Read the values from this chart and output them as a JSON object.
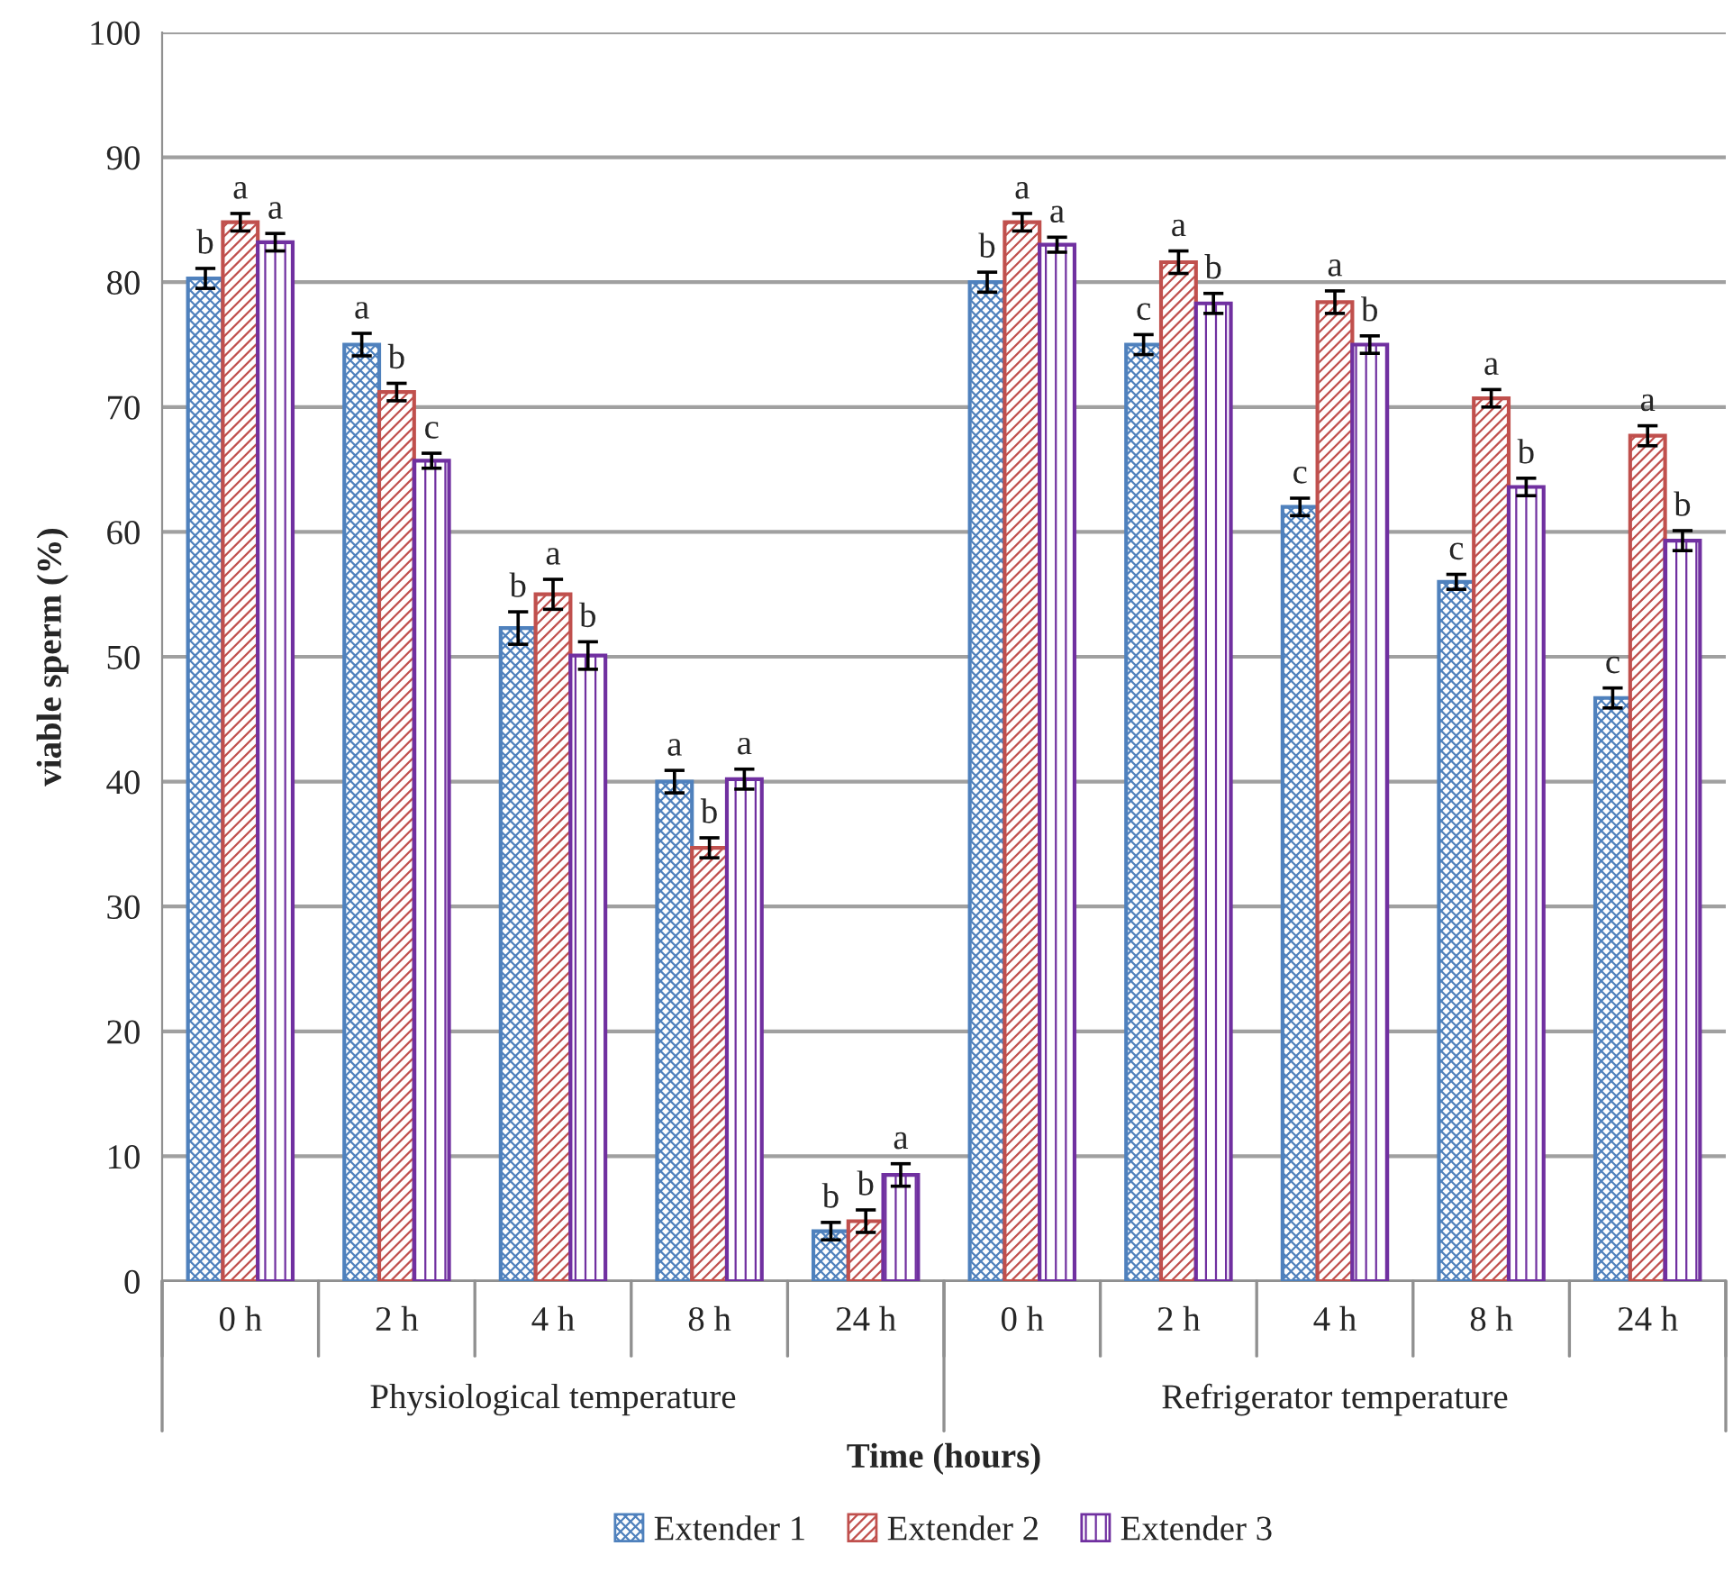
{
  "chart_data": {
    "type": "bar",
    "xlabel": "Time (hours)",
    "ylabel": "viable sperm (%)",
    "categories": [
      "0 h",
      "2 h",
      "4 h",
      "8 h",
      "24 h",
      "0 h",
      "2 h",
      "4 h",
      "8 h",
      "24 h"
    ],
    "series": [
      {
        "name": "Extender 1",
        "color": "#4f81bd",
        "values": [
          80.3,
          75,
          52.3,
          40,
          4,
          80,
          75,
          62,
          56,
          46.7
        ],
        "errors": [
          0.8,
          0.9,
          1.3,
          0.9,
          0.7,
          0.8,
          0.8,
          0.7,
          0.6,
          0.8
        ],
        "value_labels": [
          "b",
          "a",
          "b",
          "a",
          "b",
          "b",
          "c",
          "c",
          "c",
          "c"
        ]
      },
      {
        "name": "Extender 2",
        "color": "#c0504d",
        "values": [
          84.8,
          71.2,
          55,
          34.7,
          4.8,
          84.8,
          81.6,
          78.4,
          70.7,
          67.7
        ],
        "errors": [
          0.7,
          0.7,
          1.2,
          0.8,
          0.9,
          0.7,
          0.9,
          0.9,
          0.7,
          0.8
        ],
        "value_labels": [
          "a",
          "b",
          "a",
          "b",
          "b",
          "a",
          "a",
          "a",
          "a",
          "a"
        ]
      },
      {
        "name": "Extender 3",
        "color": "#7030a0",
        "values": [
          83.2,
          65.7,
          50.1,
          40.2,
          8.5,
          83,
          78.3,
          75,
          63.6,
          59.3
        ],
        "errors": [
          0.7,
          0.6,
          1.1,
          0.8,
          0.9,
          0.6,
          0.8,
          0.7,
          0.7,
          0.8
        ],
        "value_labels": [
          "a",
          "c",
          "b",
          "a",
          "a",
          "a",
          "b",
          "b",
          "b",
          "b"
        ]
      }
    ],
    "annotations": [
      "Physiological temperature",
      "Refrigerator temperature"
    ],
    "ylim": [
      0,
      100
    ],
    "yticks": [
      0,
      10,
      20,
      30,
      40,
      50,
      60,
      70,
      80,
      90,
      100
    ],
    "grid": "y",
    "legend": "bottom"
  }
}
